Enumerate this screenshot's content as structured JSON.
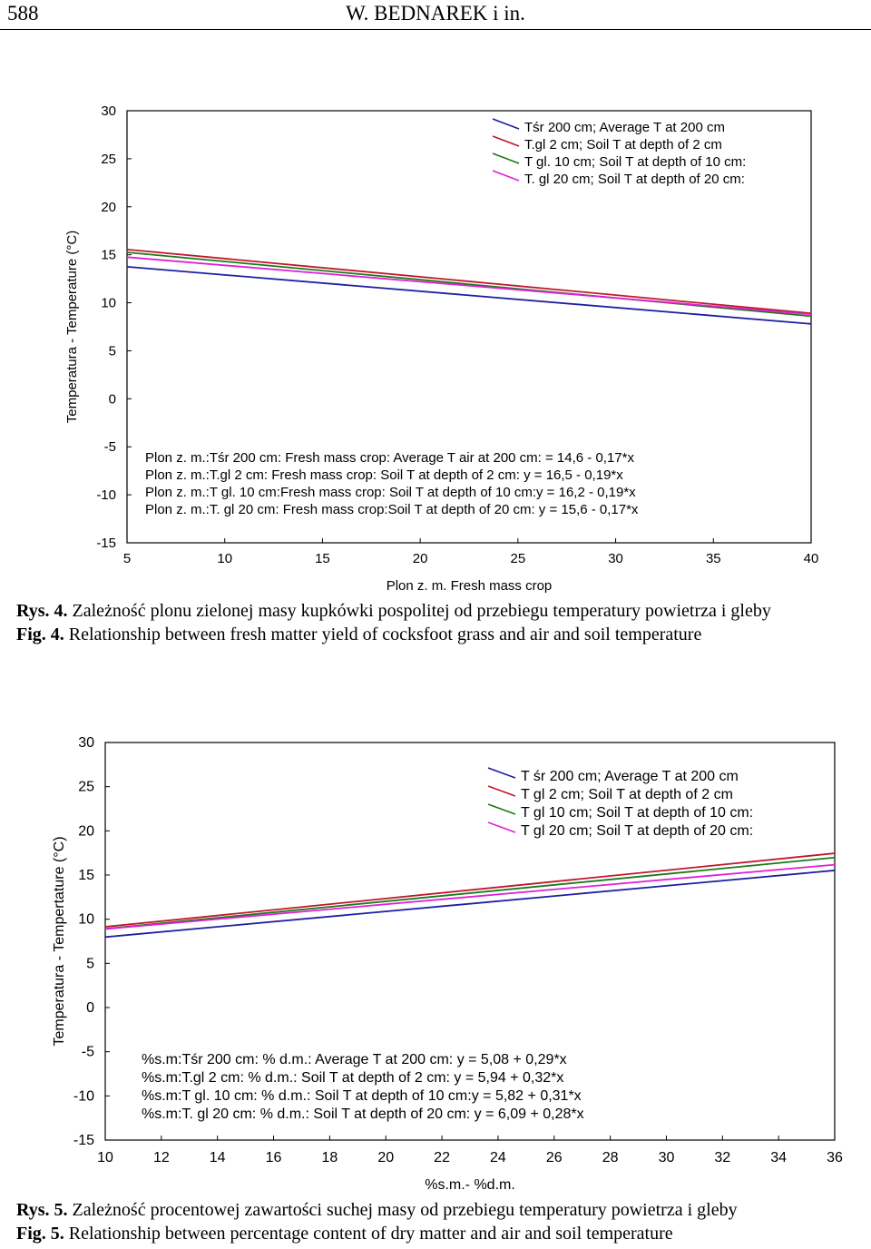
{
  "header": {
    "page_number": "588",
    "running_title": "W. BEDNAREK i in."
  },
  "figures": [
    {
      "caption_pl_label": "Rys. 4.",
      "caption_pl_text": "Zależność plonu zielonej masy kupkówki pospolitej od przebiegu temperatury powietrza i gleby",
      "caption_en_label": "Fig. 4.",
      "caption_en_text": "Relationship between fresh matter yield of cocksfoot grass and air and soil temperature"
    },
    {
      "caption_pl_label": "Rys. 5.",
      "caption_pl_text": "Zależność procentowej zawartości suchej masy od przebiegu temperatury powietrza i gleby",
      "caption_en_label": "Fig. 5.",
      "caption_en_text": "Relationship between percentage content of dry matter and air and soil temperature"
    }
  ],
  "chart_data": [
    {
      "type": "line",
      "xlabel": "Plon z. m. Fresh mass crop",
      "ylabel": "Temperatura - Temperature (°C)",
      "xlim": [
        5,
        40
      ],
      "ylim": [
        -15,
        30
      ],
      "xticks": [
        5,
        10,
        15,
        20,
        25,
        30,
        35,
        40
      ],
      "yticks": [
        30,
        25,
        20,
        15,
        10,
        5,
        0,
        -5,
        -10,
        -15
      ],
      "grid": false,
      "legend_position": "top-right",
      "series": [
        {
          "name": "Tśr 200 cm; Average T at 200 cm",
          "color": "#1f1fa0",
          "intercept": 14.6,
          "slope": -0.17
        },
        {
          "name": "T.gl 2 cm; Soil T at depth of 2 cm",
          "color": "#c0182c",
          "intercept": 16.5,
          "slope": -0.19
        },
        {
          "name": "T gl. 10 cm; Soil T at depth of 10 cm:",
          "color": "#1a7a1a",
          "intercept": 16.2,
          "slope": -0.19
        },
        {
          "name": "T. gl 20 cm; Soil T at depth of 20 cm:",
          "color": "#e020d8",
          "intercept": 15.6,
          "slope": -0.17
        }
      ],
      "annotations": [
        "Plon z. m.:Tśr 200 cm: Fresh mass crop: Average T air at 200 cm: = 14,6 - 0,17*x",
        "Plon z. m.:T.gl 2 cm: Fresh mass crop: Soil T at depth of 2 cm: y = 16,5 - 0,19*x",
        "Plon z. m.:T gl. 10 cm:Fresh mass crop:  Soil T at depth of 10 cm:y = 16,2 - 0,19*x",
        "Plon z. m.:T. gl 20 cm: Fresh mass crop:Soil T at depth of 20 cm: y = 15,6 - 0,17*x"
      ]
    },
    {
      "type": "line",
      "xlabel": "%s.m.- %d.m.",
      "ylabel": "Temperatura - Tempertature (°C)",
      "xlim": [
        10,
        36
      ],
      "ylim": [
        -15,
        30
      ],
      "xticks": [
        10,
        12,
        14,
        16,
        18,
        20,
        22,
        24,
        26,
        28,
        30,
        32,
        34,
        36
      ],
      "yticks": [
        30,
        25,
        20,
        15,
        10,
        5,
        0,
        -5,
        -10,
        -15
      ],
      "grid": false,
      "legend_position": "top-right",
      "series": [
        {
          "name": "T śr 200 cm; Average T at 200 cm",
          "color": "#1f1fa0",
          "intercept": 5.08,
          "slope": 0.29
        },
        {
          "name": "T gl 2 cm; Soil T at depth of 2 cm",
          "color": "#c0182c",
          "intercept": 5.94,
          "slope": 0.32
        },
        {
          "name": "T gl 10 cm; Soil T at depth of  10 cm:",
          "color": "#1a7a1a",
          "intercept": 5.82,
          "slope": 0.31
        },
        {
          "name": "T gl 20 cm; Soil T at depth of  20 cm:",
          "color": "#e020d8",
          "intercept": 6.09,
          "slope": 0.28
        }
      ],
      "annotations": [
        "%s.m:Tśr 200 cm: % d.m.: Average T  at 200 cm: y = 5,08 + 0,29*x",
        "%s.m:T.gl 2 cm: % d.m.: Soil T at depth of  2 cm: y = 5,94 + 0,32*x",
        "%s.m:T gl. 10 cm: % d.m.: Soil T at depth of  10 cm:y = 5,82 + 0,31*x",
        "%s.m:T. gl 20 cm: % d.m.: Soil T at depth of  20 cm: y = 6,09 + 0,28*x"
      ]
    }
  ]
}
